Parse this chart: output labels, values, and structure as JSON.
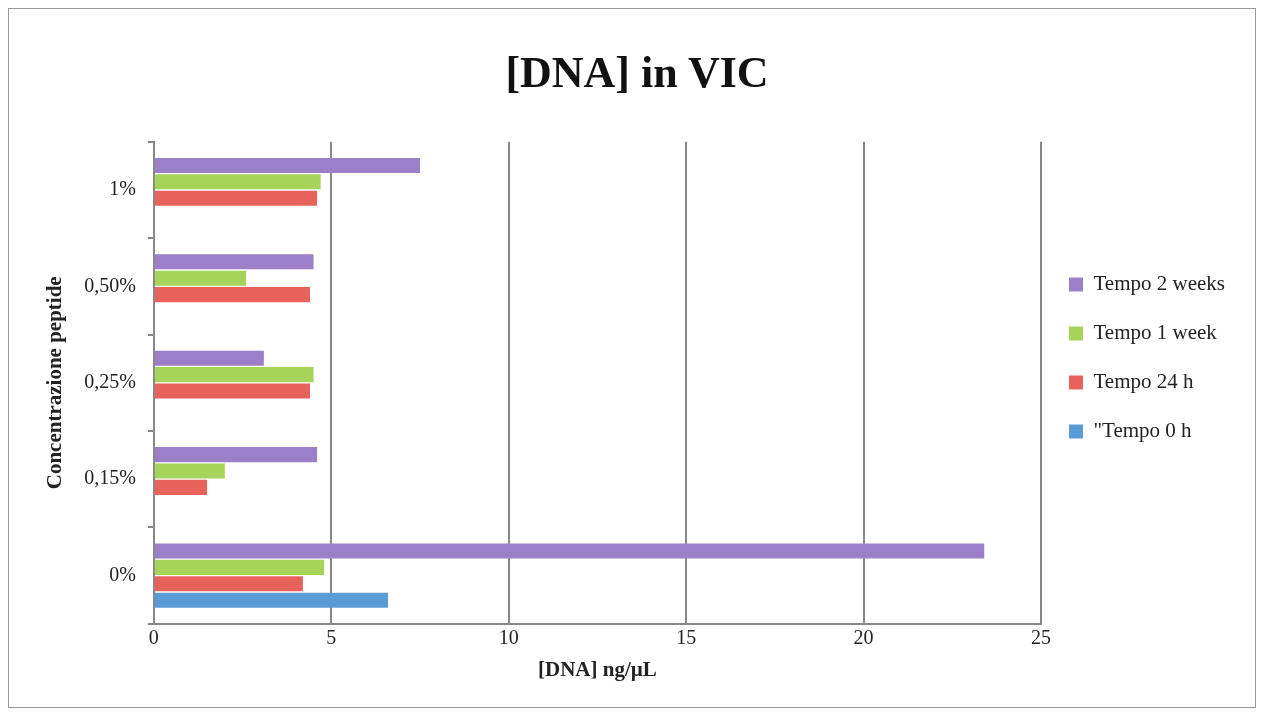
{
  "chart_data": {
    "type": "bar",
    "orientation": "horizontal",
    "title": "[DNA] in VIC",
    "xlabel": "[DNA] ng/µL",
    "ylabel": "Concentrazione peptide",
    "categories": [
      "1%",
      "0,50%",
      "0,25%",
      "0,15%",
      "0%"
    ],
    "series": [
      {
        "name": "Tempo 2 weeks",
        "color": "#9b7fc7",
        "values": [
          7.5,
          4.5,
          3.1,
          4.6,
          23.4
        ]
      },
      {
        "name": "Tempo 1 week",
        "color": "#a6d35a",
        "values": [
          4.7,
          2.6,
          4.5,
          2.0,
          4.8
        ]
      },
      {
        "name": "Tempo 24 h",
        "color": "#e8625c",
        "values": [
          4.6,
          4.4,
          4.4,
          1.5,
          4.2
        ]
      },
      {
        "name": "\"Tempo 0 h",
        "color": "#5b9bd5",
        "values": [
          null,
          null,
          null,
          null,
          6.6
        ]
      }
    ],
    "xlim": [
      0,
      25
    ],
    "xticks": [
      0,
      5,
      10,
      15,
      20,
      25
    ],
    "grid": "x",
    "legend": "right"
  }
}
